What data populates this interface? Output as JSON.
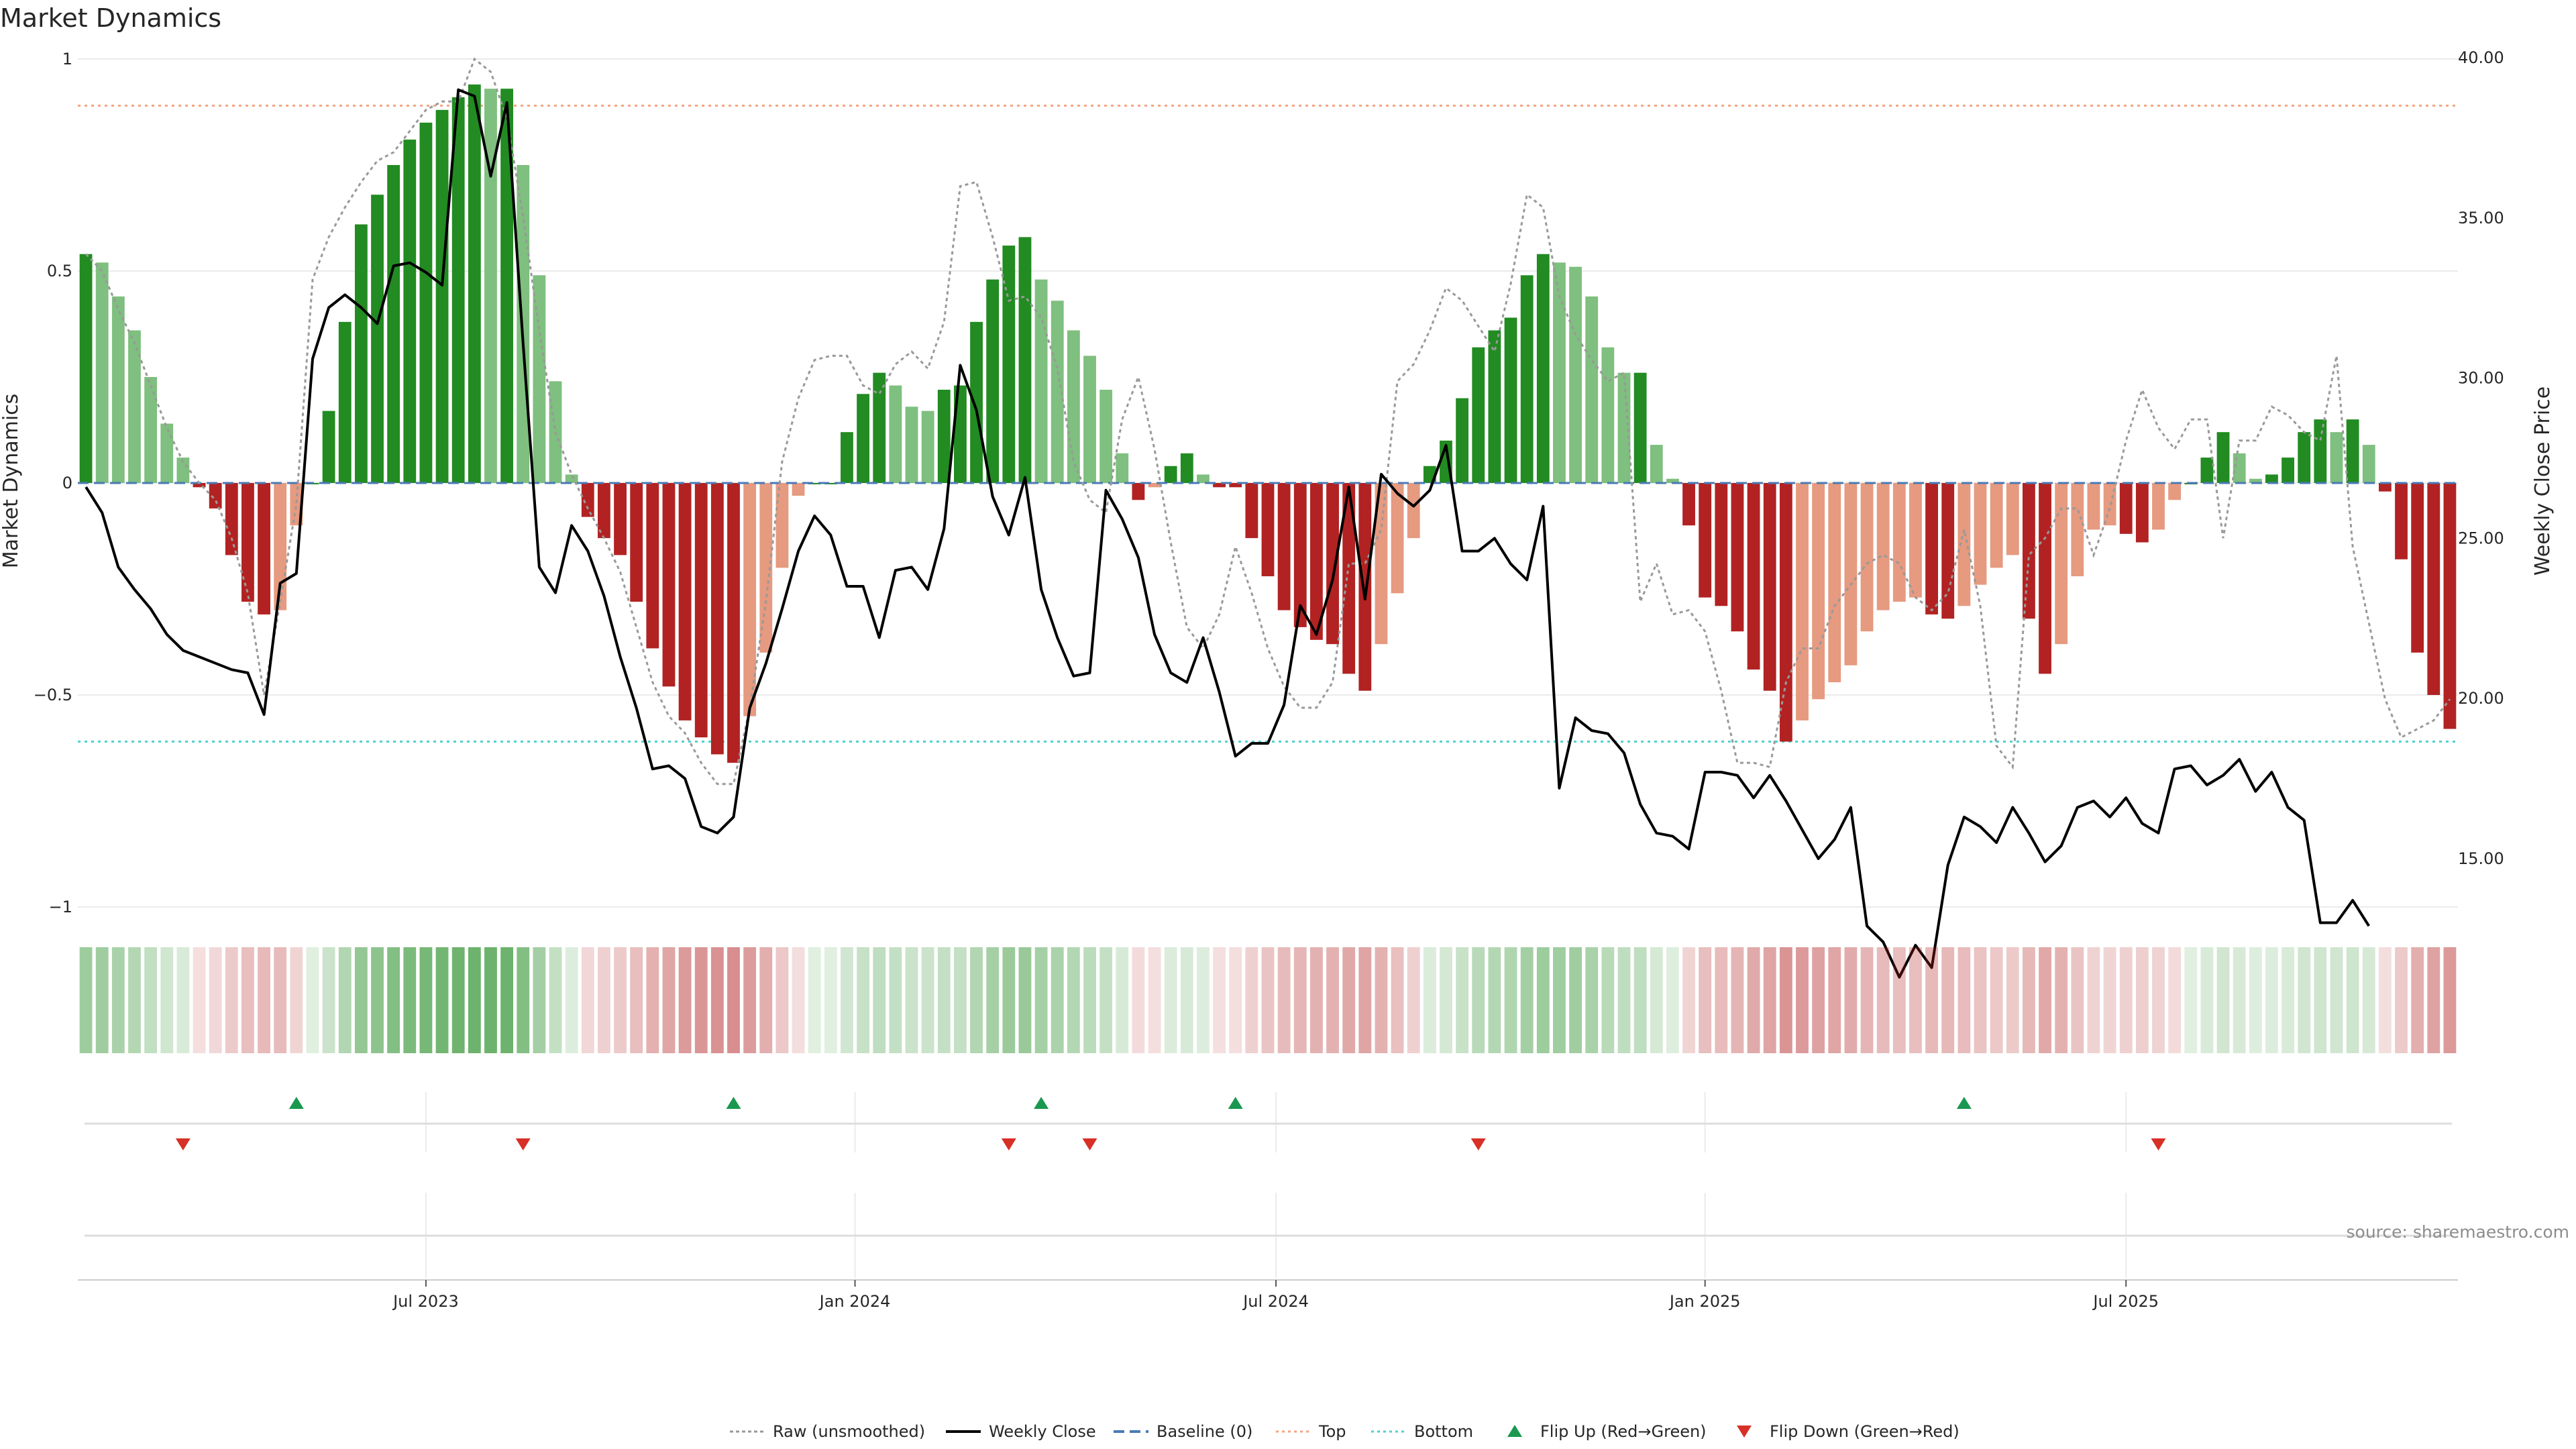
{
  "chart_data": {
    "type": "bar",
    "title": "Market Dynamics",
    "ylabel": "Market Dynamics",
    "y2label": "Weekly Close Price",
    "ylim": [
      -1,
      1
    ],
    "y2lim": [
      10,
      40
    ],
    "yticks": [
      {
        "v": 1,
        "label": "1"
      },
      {
        "v": 0.5,
        "label": "0.5"
      },
      {
        "v": 0,
        "label": "0"
      },
      {
        "v": -0.5,
        "label": "−0.5"
      },
      {
        "v": -1,
        "label": "−1"
      }
    ],
    "y2ticks": [
      {
        "v": 40,
        "label": "40.00"
      },
      {
        "v": 35,
        "label": "35.00"
      },
      {
        "v": 30,
        "label": "30.00"
      },
      {
        "v": 25,
        "label": "25.00"
      },
      {
        "v": 20,
        "label": "20.00"
      },
      {
        "v": 15,
        "label": "15.00"
      }
    ],
    "xticks": [
      {
        "week": 21.5,
        "label": "Jul 2023"
      },
      {
        "week": 48,
        "label": "Jan 2024"
      },
      {
        "week": 74,
        "label": "Jul 2024"
      },
      {
        "week": 100.5,
        "label": "Jan 2025"
      },
      {
        "week": 126.5,
        "label": "Jul 2025"
      }
    ],
    "top_line": 0.89,
    "bottom_line": -0.61,
    "momentum": [
      0.54,
      0.52,
      0.44,
      0.36,
      0.25,
      0.14,
      0.06,
      -0.01,
      -0.06,
      -0.17,
      -0.28,
      -0.31,
      -0.3,
      -0.1,
      0.0,
      0.17,
      0.38,
      0.61,
      0.68,
      0.75,
      0.81,
      0.85,
      0.88,
      0.91,
      0.94,
      0.93,
      0.93,
      0.75,
      0.49,
      0.24,
      0.02,
      -0.08,
      -0.13,
      -0.17,
      -0.28,
      -0.39,
      -0.48,
      -0.56,
      -0.6,
      -0.64,
      -0.66,
      -0.55,
      -0.4,
      -0.2,
      -0.03,
      0.0,
      0.0,
      0.12,
      0.21,
      0.26,
      0.23,
      0.18,
      0.17,
      0.22,
      0.23,
      0.38,
      0.48,
      0.56,
      0.58,
      0.48,
      0.43,
      0.36,
      0.3,
      0.22,
      0.07,
      -0.04,
      -0.01,
      0.04,
      0.07,
      0.02,
      -0.01,
      -0.01,
      -0.13,
      -0.22,
      -0.3,
      -0.34,
      -0.37,
      -0.38,
      -0.45,
      -0.49,
      -0.38,
      -0.26,
      -0.13,
      0.04,
      0.1,
      0.2,
      0.32,
      0.36,
      0.39,
      0.49,
      0.54,
      0.52,
      0.51,
      0.44,
      0.32,
      0.26,
      0.26,
      0.09,
      0.01,
      -0.1,
      -0.27,
      -0.29,
      -0.35,
      -0.44,
      -0.49,
      -0.61,
      -0.56,
      -0.51,
      -0.47,
      -0.43,
      -0.35,
      -0.3,
      -0.28,
      -0.27,
      -0.31,
      -0.32,
      -0.29,
      -0.24,
      -0.2,
      -0.17,
      -0.32,
      -0.45,
      -0.38,
      -0.22,
      -0.11,
      -0.1,
      -0.12,
      -0.14,
      -0.11,
      -0.04,
      0.0,
      0.06,
      0.12,
      0.07,
      0.01,
      0.02,
      0.06,
      0.12,
      0.15,
      0.12,
      0.15,
      0.09,
      -0.02,
      -0.18,
      -0.4,
      -0.5,
      -0.58
    ],
    "price": [
      26.6,
      25.8,
      24.1,
      23.4,
      22.8,
      22.0,
      21.5,
      21.3,
      21.1,
      20.9,
      20.8,
      19.5,
      23.6,
      23.9,
      30.6,
      32.2,
      32.6,
      32.2,
      31.7,
      33.5,
      33.6,
      33.3,
      32.9,
      39.0,
      38.8,
      36.3,
      38.6,
      31.1,
      24.1,
      23.3,
      25.4,
      24.6,
      23.2,
      21.3,
      19.7,
      17.8,
      17.9,
      17.5,
      16.0,
      15.8,
      16.3,
      19.7,
      21.1,
      22.8,
      24.6,
      25.7,
      25.1,
      23.5,
      23.5,
      21.9,
      24.0,
      24.1,
      23.4,
      25.3,
      30.4,
      29.0,
      26.3,
      25.1,
      26.9,
      23.4,
      21.9,
      20.7,
      20.8,
      26.5,
      25.6,
      24.4,
      22.0,
      20.8,
      20.5,
      21.9,
      20.2,
      18.2,
      18.6,
      18.6,
      19.8,
      22.9,
      22.0,
      23.7,
      26.6,
      23.1,
      27.0,
      26.4,
      26.0,
      26.5,
      27.9,
      24.6,
      24.6,
      25.0,
      24.2,
      23.7,
      26.0,
      17.2,
      19.4,
      19.0,
      18.9,
      18.3,
      16.7,
      15.8,
      15.7,
      15.3,
      17.7,
      17.7,
      17.6,
      16.9,
      17.6,
      16.8,
      15.9,
      15.0,
      15.6,
      16.6,
      12.9,
      12.4,
      11.3,
      12.3,
      11.6,
      14.8,
      16.3,
      16.0,
      15.5,
      16.6,
      15.8,
      14.9,
      15.4,
      16.6,
      16.8,
      16.3,
      16.9,
      16.1,
      15.8,
      17.8,
      17.9,
      17.3,
      17.6,
      18.1,
      17.1,
      17.7,
      16.6,
      16.2,
      13.0,
      13.0,
      13.7,
      12.9
    ],
    "raw": [
      0.54,
      0.5,
      0.41,
      0.33,
      0.23,
      0.13,
      0.05,
      0.0,
      -0.04,
      -0.13,
      -0.26,
      -0.5,
      -0.28,
      -0.05,
      0.48,
      0.58,
      0.65,
      0.71,
      0.76,
      0.78,
      0.83,
      0.88,
      0.9,
      0.9,
      1.0,
      0.97,
      0.86,
      0.63,
      0.36,
      0.12,
      0.02,
      -0.06,
      -0.13,
      -0.21,
      -0.34,
      -0.47,
      -0.55,
      -0.59,
      -0.66,
      -0.71,
      -0.71,
      -0.53,
      -0.28,
      0.05,
      0.2,
      0.29,
      0.3,
      0.3,
      0.23,
      0.21,
      0.28,
      0.31,
      0.27,
      0.38,
      0.7,
      0.71,
      0.58,
      0.43,
      0.44,
      0.39,
      0.27,
      0.05,
      -0.04,
      -0.07,
      0.15,
      0.25,
      0.08,
      -0.14,
      -0.34,
      -0.39,
      -0.31,
      -0.15,
      -0.26,
      -0.39,
      -0.48,
      -0.53,
      -0.53,
      -0.47,
      -0.19,
      -0.19,
      -0.11,
      0.24,
      0.28,
      0.36,
      0.46,
      0.43,
      0.37,
      0.31,
      0.47,
      0.68,
      0.65,
      0.44,
      0.35,
      0.29,
      0.24,
      0.26,
      -0.28,
      -0.19,
      -0.31,
      -0.3,
      -0.35,
      -0.49,
      -0.66,
      -0.66,
      -0.67,
      -0.47,
      -0.39,
      -0.39,
      -0.29,
      -0.24,
      -0.19,
      -0.17,
      -0.19,
      -0.27,
      -0.3,
      -0.26,
      -0.11,
      -0.29,
      -0.62,
      -0.67,
      -0.17,
      -0.13,
      -0.06,
      -0.06,
      -0.17,
      -0.06,
      0.1,
      0.22,
      0.13,
      0.08,
      0.15,
      0.15,
      -0.13,
      0.1,
      0.1,
      0.18,
      0.16,
      0.12,
      0.1,
      0.3,
      -0.15,
      -0.33,
      -0.51,
      -0.6,
      -0.58,
      -0.56,
      -0.51
    ],
    "strength_strip_series": "momentum",
    "flip_up_weeks": [
      13,
      40,
      59,
      71,
      116
    ],
    "flip_down_weeks": [
      6,
      27,
      57,
      62,
      86,
      128
    ],
    "legend": [
      {
        "key": "raw",
        "label": "Raw (unsmoothed)"
      },
      {
        "key": "close",
        "label": "Weekly Close"
      },
      {
        "key": "baseline",
        "label": "Baseline (0)"
      },
      {
        "key": "top",
        "label": "Top"
      },
      {
        "key": "bottom",
        "label": "Bottom"
      },
      {
        "key": "flipup",
        "label": "Flip Up (Red→Green)"
      },
      {
        "key": "flipdown",
        "label": "Flip Down (Green→Red)"
      }
    ],
    "source": "source: sharemaestro.com"
  },
  "colors": {
    "green_strong": "#228b22",
    "green_light": "#7fbf7f",
    "red_strong": "#b22222",
    "red_light": "#e69a80",
    "close_line": "#000000",
    "raw_line": "#999999",
    "baseline": "#4a7ab5",
    "top_line": "#f4a582",
    "bottom_line": "#4fd1d1",
    "flip_up": "#1a9850",
    "flip_down": "#d73027",
    "grid": "#ebebeb"
  }
}
